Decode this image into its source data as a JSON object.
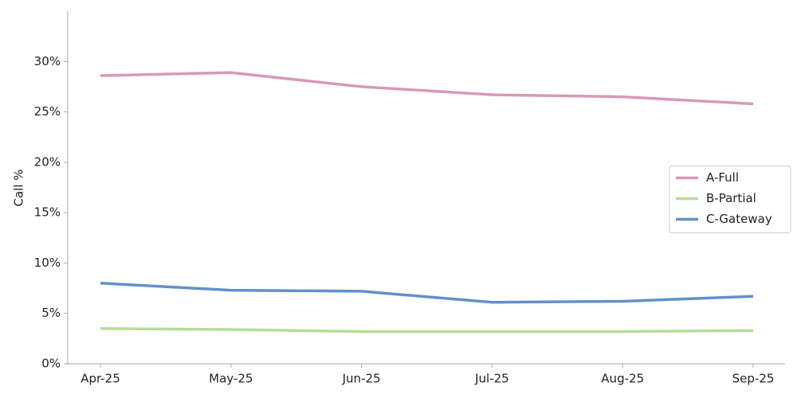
{
  "chart_data": {
    "type": "line",
    "y_label": "Call %",
    "categories": [
      "Apr-25",
      "May-25",
      "Jun-25",
      "Jul-25",
      "Aug-25",
      "Sep-25"
    ],
    "series": [
      {
        "name": "A-Full",
        "color": "#d899b8",
        "values": [
          28.6,
          28.9,
          27.5,
          26.7,
          26.5,
          25.8
        ]
      },
      {
        "name": "B-Partial",
        "color": "#b5dd96",
        "values": [
          3.5,
          3.4,
          3.2,
          3.2,
          3.2,
          3.3
        ]
      },
      {
        "name": "C-Gateway",
        "color": "#6390c8",
        "values": [
          8.0,
          7.3,
          7.2,
          6.1,
          6.2,
          6.7
        ]
      }
    ],
    "ylim": [
      0,
      35
    ],
    "yticks": [
      {
        "value": 0,
        "label": "0%"
      },
      {
        "value": 5,
        "label": "5%"
      },
      {
        "value": 10,
        "label": "10%"
      },
      {
        "value": 15,
        "label": "15%"
      },
      {
        "value": 20,
        "label": "20%"
      },
      {
        "value": 25,
        "label": "25%"
      },
      {
        "value": 30,
        "label": "30%"
      }
    ],
    "legend": "center right"
  }
}
